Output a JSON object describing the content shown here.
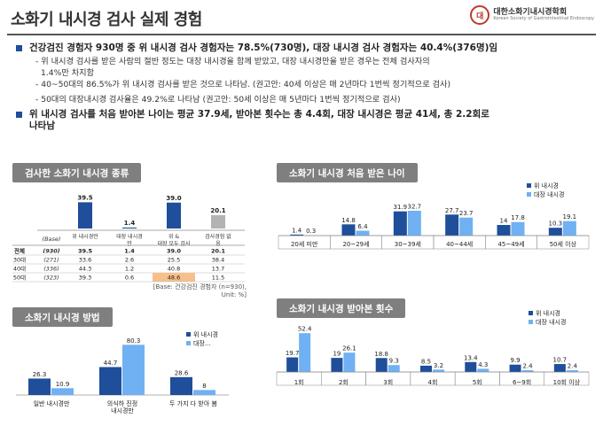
{
  "header": {
    "title": "소화기 내시경 검사 실제 경험",
    "logo_mark": "대",
    "logo_text": "대한소화기내시경학회",
    "logo_sub": "Korean Society of Gastrointestinal Endoscopy"
  },
  "bullets": {
    "b1": "건강검진 경험자 930명 중 위 내시경 검사 경험자는 78.5%(730명), 대장 내시경 검사 경험자는 40.4%(376명)임",
    "s1": "- 위 내시경 검사를 받은 사람의 절반 정도는 대장 내시경을 함께 받았고, 대장 내시경만을 받은 경우는 전체 검사자의",
    "s1b": "1.4%만 차지함",
    "s2": "- 40~50대의 86.5%가 위 내시경 검사를 받은 것으로 나타남. (권고안: 40세 이상은 매 2년마다 1번씩 정기적으로 검사)",
    "s3": "- 50대의 대장내시경 검사율은 49.2%로 나타남 (권고안: 50세 이상은 매 5년마다 1번씩 정기적으로 검사)",
    "b2": "위 내시경 검사를 처음 받아본 나이는 평균 37.9세, 받아본 횟수는 총 4.4회, 대장 내시경은 평균 41세, 총 2.2회로",
    "b2b": "나타남"
  },
  "sections": {
    "types": "검사한 소화기 내시경 종류",
    "method": "소화기 내시경 방법",
    "first_age": "소화기 내시경 처음 받은 나이",
    "count": "소화기 내시경 받아본 횟수"
  },
  "colors": {
    "dark": "#1f4e9a",
    "light": "#6fb1f2",
    "gray": "#b3b3b3",
    "highlight": "#f7c08a"
  },
  "types_table": {
    "col_headers": [
      "위 내시경만",
      "대장 내시경만",
      "위 & 대장 모두 검사",
      "검사경험 없음"
    ],
    "base_label": "(Base)",
    "top_values": [
      "39.5",
      "1.4",
      "39.0",
      "20.1"
    ],
    "rows": [
      {
        "label": "전체",
        "base": "(930)",
        "cells": [
          "39.5",
          "1.4",
          "39.0",
          "20.1"
        ]
      },
      {
        "label": "30대",
        "base": "(271)",
        "cells": [
          "33.6",
          "2.6",
          "25.5",
          "38.4"
        ]
      },
      {
        "label": "40대",
        "base": "(336)",
        "cells": [
          "44.3",
          "1.2",
          "40.8",
          "13.7"
        ]
      },
      {
        "label": "50대",
        "base": "(323)",
        "cells": [
          "39.3",
          "0.6",
          "48.6",
          "11.5"
        ]
      }
    ],
    "note1": "[Base: 건강검진 경험자 (n=930),",
    "note2": "Unit: %]"
  },
  "chart_data": [
    {
      "type": "bar",
      "title": "검사한 소화기 내시경 종류",
      "categories": [
        "위 내시경만",
        "대장 내시경만",
        "위 & 대장 모두 검사",
        "검사경험 없음"
      ],
      "values": [
        39.5,
        1.4,
        39.0,
        20.1
      ]
    },
    {
      "type": "bar",
      "title": "소화기 내시경 처음 받은 나이",
      "categories": [
        "20세 미만",
        "20~29세",
        "30~39세",
        "40~44세",
        "45~49세",
        "50세 이상"
      ],
      "series": [
        {
          "name": "위 내시경",
          "values": [
            1.4,
            14.8,
            31.9,
            27.7,
            14.0,
            10.3
          ]
        },
        {
          "name": "대장 내시경",
          "values": [
            0.3,
            6.4,
            32.7,
            23.7,
            17.8,
            19.1
          ]
        }
      ],
      "legend": "top-right"
    },
    {
      "type": "bar",
      "title": "소화기 내시경 방법",
      "categories": [
        "일반 내시경만",
        "의식하 진정 내시경만",
        "두 가지 다 받아 봄"
      ],
      "series": [
        {
          "name": "위 내시경",
          "values": [
            26.3,
            44.7,
            28.6
          ]
        },
        {
          "name": "대장...",
          "values": [
            10.9,
            80.3,
            8.0
          ]
        }
      ],
      "legend": "top-right"
    },
    {
      "type": "bar",
      "title": "소화기 내시경 받아본 횟수",
      "categories": [
        "1회",
        "2회",
        "3회",
        "4회",
        "5회",
        "6~9회",
        "10회 이상"
      ],
      "series": [
        {
          "name": "위 내시경",
          "values": [
            19.7,
            19.0,
            18.8,
            8.5,
            13.4,
            9.9,
            10.7
          ]
        },
        {
          "name": "대장 내시경",
          "values": [
            52.4,
            26.1,
            9.3,
            3.2,
            4.3,
            2.4,
            2.4
          ]
        }
      ],
      "legend": "top-right"
    }
  ]
}
